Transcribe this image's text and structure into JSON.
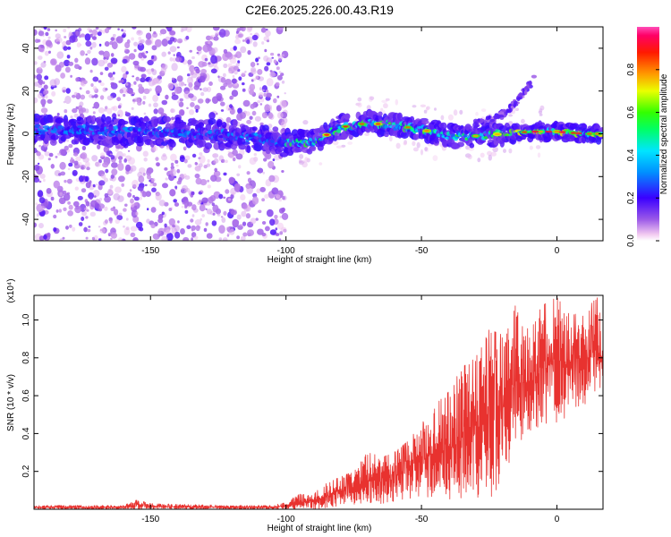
{
  "page_title": "C2E6.2025.226.00.43.R19",
  "chart_data": [
    {
      "type": "heatmap",
      "title": "C2E6.2025.226.00.43.R19",
      "xlabel": "Height of straight line (km)",
      "ylabel": "Frequency (Hz)",
      "xlim": [
        -193,
        17
      ],
      "ylim": [
        -50,
        50
      ],
      "xticks": [
        -150,
        -100,
        -50,
        0
      ],
      "yticks": [
        -40,
        -20,
        0,
        20,
        40
      ],
      "grid": false,
      "colorbar": {
        "label": "Normalized spectral amplitude",
        "range": [
          0,
          1
        ],
        "ticks": [
          "0.0",
          "0.2",
          "0.4",
          "0.6",
          "0.8"
        ],
        "colormap": "rainbow (white-purple-blue-cyan-green-yellow-red-magenta)"
      },
      "features": [
        {
          "description": "main ridge near 0 Hz",
          "x_range": [
            -193,
            17
          ],
          "freq_center_hz": 0,
          "amplitude_peak": 0.9
        },
        {
          "description": "scattered noise blobs",
          "x_range": [
            -193,
            -100
          ],
          "freq_range_hz": [
            -50,
            50
          ],
          "amplitude_typical": 0.05
        },
        {
          "description": "upper branch",
          "x_range": [
            -30,
            -8
          ],
          "freq_range_hz": [
            5,
            27
          ],
          "amplitude_typical": 0.15
        }
      ],
      "ridge_centers": [
        {
          "x": -190,
          "y": 2
        },
        {
          "x": -175,
          "y": 2
        },
        {
          "x": -160,
          "y": 1
        },
        {
          "x": -145,
          "y": 1
        },
        {
          "x": -130,
          "y": 0
        },
        {
          "x": -115,
          "y": -1
        },
        {
          "x": -100,
          "y": -4
        },
        {
          "x": -90,
          "y": -4
        },
        {
          "x": -80,
          "y": 3
        },
        {
          "x": -70,
          "y": 5
        },
        {
          "x": -60,
          "y": 4
        },
        {
          "x": -50,
          "y": 2
        },
        {
          "x": -40,
          "y": -1
        },
        {
          "x": -30,
          "y": -1
        },
        {
          "x": -20,
          "y": 0
        },
        {
          "x": -10,
          "y": 1
        },
        {
          "x": 0,
          "y": 1
        },
        {
          "x": 10,
          "y": 0
        },
        {
          "x": 16,
          "y": 0
        }
      ]
    },
    {
      "type": "line",
      "xlabel": "Height of straight line (km)",
      "ylabel": "SNR (10 * v/v)",
      "y_multiplier": "(x10⁴)",
      "xlim": [
        -193,
        17
      ],
      "ylim": [
        0,
        1.13
      ],
      "xticks": [
        -150,
        -100,
        -50,
        0
      ],
      "yticks": [
        0.2,
        0.4,
        0.6,
        0.8,
        1.0
      ],
      "ytick_labels": [
        "0.2",
        "0.4",
        "0.6",
        "0.8",
        "1.0"
      ],
      "grid": false,
      "color": "#e8322f",
      "envelope": {
        "x": [
          -193,
          -160,
          -155,
          -150,
          -120,
          -105,
          -100,
          -95,
          -90,
          -85,
          -80,
          -75,
          -70,
          -65,
          -60,
          -55,
          -50,
          -45,
          -40,
          -35,
          -30,
          -25,
          -20,
          -15,
          -10,
          -5,
          0,
          5,
          10,
          15,
          17
        ],
        "lo": [
          0.0,
          0.0,
          0.0,
          0.0,
          0.0,
          0.0,
          0.0,
          0.0,
          0.0,
          0.0,
          0.02,
          0.02,
          0.03,
          0.03,
          0.04,
          0.05,
          0.06,
          0.06,
          0.05,
          0.05,
          0.04,
          0.06,
          0.1,
          0.3,
          0.4,
          0.45,
          0.45,
          0.5,
          0.55,
          0.6,
          0.62
        ],
        "hi": [
          0.02,
          0.02,
          0.05,
          0.03,
          0.02,
          0.02,
          0.04,
          0.08,
          0.08,
          0.14,
          0.17,
          0.2,
          0.3,
          0.28,
          0.3,
          0.36,
          0.45,
          0.55,
          0.62,
          0.75,
          0.8,
          0.95,
          0.92,
          1.1,
          0.98,
          1.08,
          1.12,
          1.02,
          1.05,
          1.12,
          0.95
        ]
      }
    }
  ]
}
